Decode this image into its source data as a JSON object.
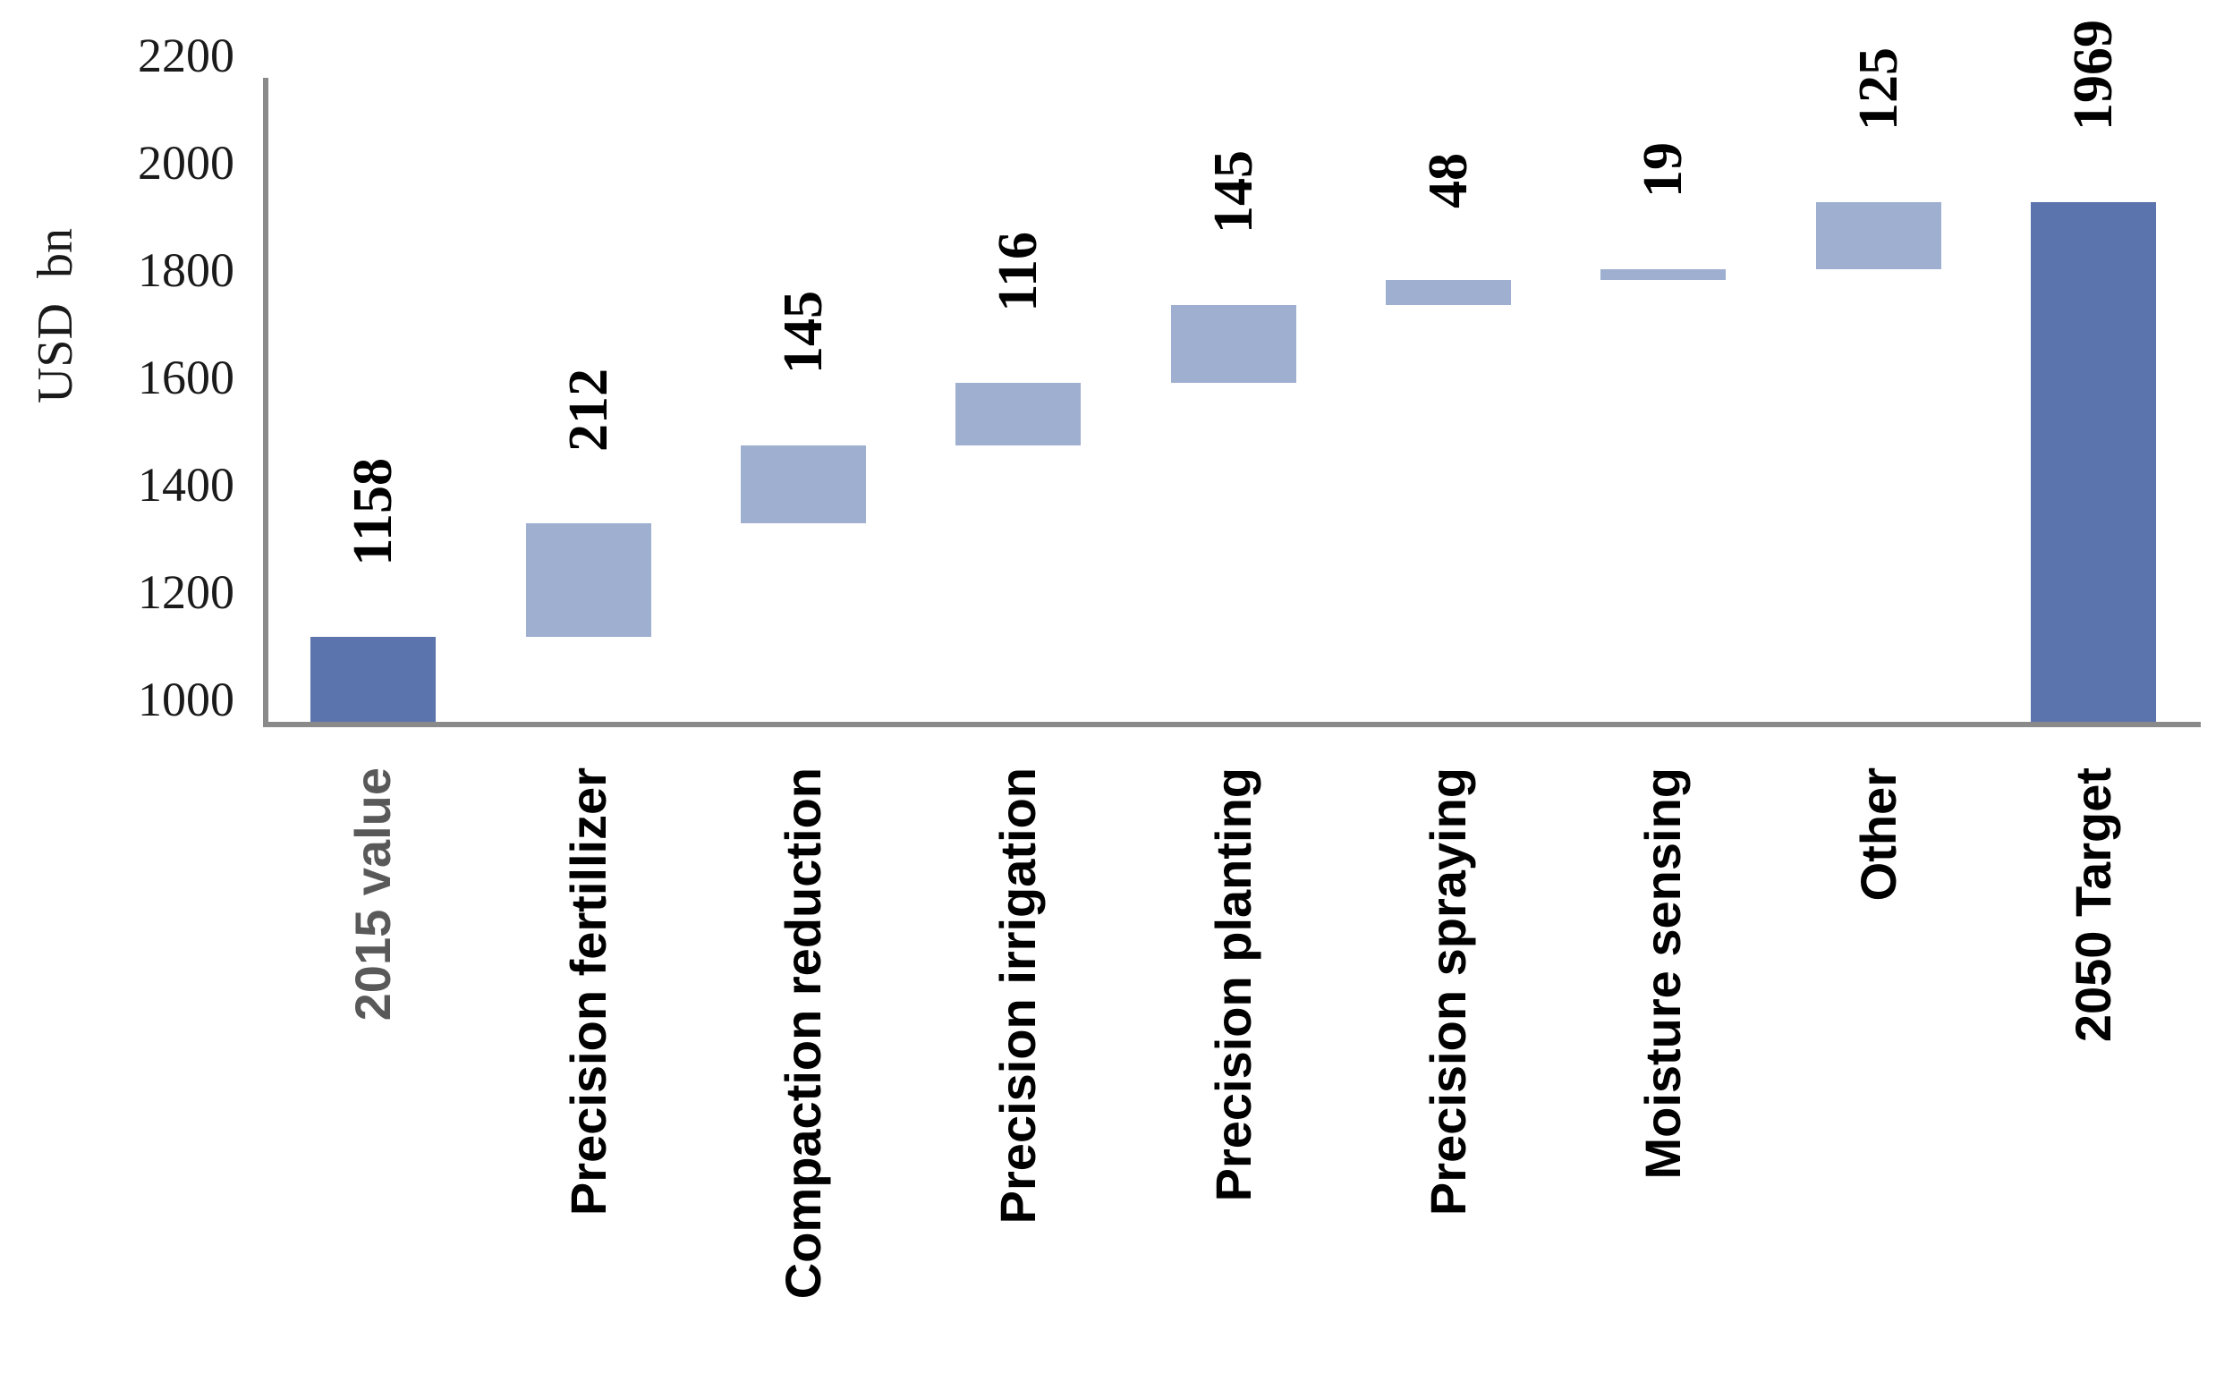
{
  "chart_data": {
    "type": "bar",
    "subtype": "waterfall",
    "title": "",
    "ylabel": "USD  bn",
    "xlabel": "",
    "ylim": [
      1000,
      2200
    ],
    "ytick_step": 200,
    "yticks": [
      "1000",
      "1200",
      "1400",
      "1600",
      "1800",
      "2000",
      "2200"
    ],
    "grid": false,
    "legend": null,
    "categories": [
      "2015 value",
      "Precision fertillizer",
      "Compaction reduction",
      "Precision irrigation",
      "Precision planting",
      "Precision spraying",
      "Moisture sensing",
      "Other",
      "2050 Target"
    ],
    "bars": [
      {
        "label": "2015 value",
        "value": 1158,
        "display_value": "1158",
        "kind": "total",
        "label_color": "#595959"
      },
      {
        "label": "Precision fertillizer",
        "value": 212,
        "display_value": "212",
        "kind": "increase",
        "label_color": "#000000"
      },
      {
        "label": "Compaction reduction",
        "value": 145,
        "display_value": "145",
        "kind": "increase",
        "label_color": "#000000"
      },
      {
        "label": "Precision irrigation",
        "value": 116,
        "display_value": "116",
        "kind": "increase",
        "label_color": "#000000"
      },
      {
        "label": "Precision planting",
        "value": 145,
        "display_value": "145",
        "kind": "increase",
        "label_color": "#000000"
      },
      {
        "label": "Precision spraying",
        "value": 48,
        "display_value": "48",
        "kind": "increase",
        "label_color": "#000000"
      },
      {
        "label": "Moisture sensing",
        "value": 19,
        "display_value": "19",
        "kind": "increase",
        "label_color": "#000000"
      },
      {
        "label": "Other",
        "value": 125,
        "display_value": "125",
        "kind": "increase",
        "label_color": "#000000"
      },
      {
        "label": "2050 Target",
        "value": 1969,
        "display_value": "1969",
        "kind": "total",
        "label_color": "#000000"
      }
    ],
    "cumulative": [
      1158,
      1370,
      1515,
      1631,
      1776,
      1824,
      1843,
      1968,
      1969
    ],
    "colors": {
      "total_bar": "#5b74ad",
      "increase_bar": "#9fafd0",
      "axis": "#8a8a8a",
      "value_label": "#000000",
      "tick_label": "#1a1a1a",
      "first_category_label": "#595959",
      "category_label": "#000000"
    }
  }
}
